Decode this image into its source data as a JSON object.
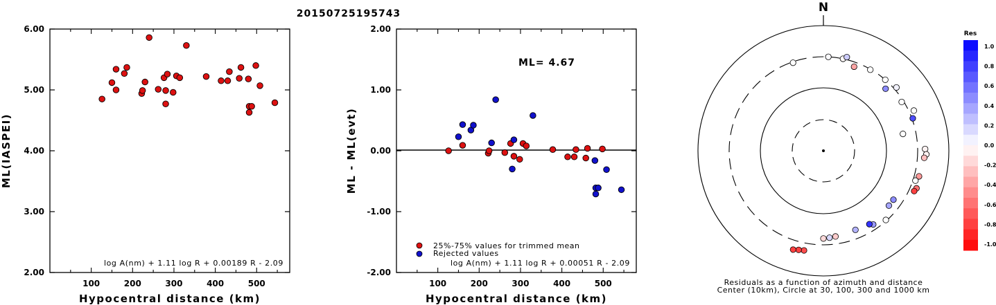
{
  "figure_title": "20150725195743",
  "colors": {
    "kept": "#dd1111",
    "rejected": "#1111cc",
    "axis": "#000000"
  },
  "chart_data": [
    {
      "type": "scatter",
      "xlabel": "Hypocentral distance (km)",
      "ylabel": "ML(IASPEI)",
      "xlim": [
        0,
        580
      ],
      "ylim": [
        2.0,
        6.0
      ],
      "x_ticks": [
        "100",
        "200",
        "300",
        "400",
        "500"
      ],
      "y_ticks": [
        "2.00",
        "3.00",
        "4.00",
        "5.00",
        "6.00"
      ],
      "formula": "log A(nm) + 1.11 log R + 0.00189 R - 2.09",
      "points": [
        {
          "x": 126,
          "y": 4.85
        },
        {
          "x": 150,
          "y": 5.12
        },
        {
          "x": 160,
          "y": 5.34
        },
        {
          "x": 160,
          "y": 5.0
        },
        {
          "x": 180,
          "y": 5.27
        },
        {
          "x": 186,
          "y": 5.37
        },
        {
          "x": 222,
          "y": 4.94
        },
        {
          "x": 224,
          "y": 4.99
        },
        {
          "x": 230,
          "y": 5.13
        },
        {
          "x": 240,
          "y": 5.86
        },
        {
          "x": 262,
          "y": 5.01
        },
        {
          "x": 276,
          "y": 5.2
        },
        {
          "x": 280,
          "y": 4.99
        },
        {
          "x": 280,
          "y": 4.77
        },
        {
          "x": 284,
          "y": 5.26
        },
        {
          "x": 298,
          "y": 4.96
        },
        {
          "x": 306,
          "y": 5.23
        },
        {
          "x": 314,
          "y": 5.2
        },
        {
          "x": 330,
          "y": 5.73
        },
        {
          "x": 378,
          "y": 5.22
        },
        {
          "x": 414,
          "y": 5.15
        },
        {
          "x": 430,
          "y": 5.15
        },
        {
          "x": 434,
          "y": 5.3
        },
        {
          "x": 458,
          "y": 5.19
        },
        {
          "x": 462,
          "y": 5.37
        },
        {
          "x": 480,
          "y": 5.18
        },
        {
          "x": 482,
          "y": 4.73
        },
        {
          "x": 482,
          "y": 4.63
        },
        {
          "x": 488,
          "y": 4.73
        },
        {
          "x": 498,
          "y": 5.4
        },
        {
          "x": 508,
          "y": 5.07
        },
        {
          "x": 544,
          "y": 4.79
        }
      ]
    },
    {
      "type": "scatter",
      "xlabel": "Hypocentral distance (km)",
      "ylabel": "ML - ML(evt)",
      "xlim": [
        0,
        580
      ],
      "ylim": [
        -2.0,
        2.0
      ],
      "x_ticks": [
        "100",
        "200",
        "300",
        "400",
        "500"
      ],
      "y_ticks": [
        "-2.00",
        "-1.00",
        "0.00",
        "1.00",
        "2.00"
      ],
      "zero_line": true,
      "annotation": "ML= 4.67",
      "formula": "log A(nm) + 1.11 log R + 0.00051 R - 2.09",
      "legend": [
        "25%-75% values for trimmed mean",
        "Rejected values"
      ],
      "legend_position": "bottom-left",
      "series": [
        {
          "name": "25%-75% values for trimmed mean",
          "points": [
            {
              "x": 126,
              "y": 0.0
            },
            {
              "x": 160,
              "y": 0.09
            },
            {
              "x": 222,
              "y": -0.04
            },
            {
              "x": 224,
              "y": 0.0
            },
            {
              "x": 262,
              "y": -0.03
            },
            {
              "x": 276,
              "y": 0.12
            },
            {
              "x": 284,
              "y": -0.09
            },
            {
              "x": 298,
              "y": -0.14
            },
            {
              "x": 306,
              "y": 0.12
            },
            {
              "x": 314,
              "y": 0.08
            },
            {
              "x": 378,
              "y": 0.02
            },
            {
              "x": 414,
              "y": -0.1
            },
            {
              "x": 430,
              "y": -0.1
            },
            {
              "x": 434,
              "y": 0.02
            },
            {
              "x": 458,
              "y": -0.12
            },
            {
              "x": 462,
              "y": 0.04
            },
            {
              "x": 498,
              "y": 0.03
            }
          ]
        },
        {
          "name": "Rejected values",
          "points": [
            {
              "x": 150,
              "y": 0.23
            },
            {
              "x": 160,
              "y": 0.43
            },
            {
              "x": 180,
              "y": 0.34
            },
            {
              "x": 186,
              "y": 0.42
            },
            {
              "x": 230,
              "y": 0.13
            },
            {
              "x": 240,
              "y": 0.84
            },
            {
              "x": 280,
              "y": -0.3
            },
            {
              "x": 284,
              "y": 0.18
            },
            {
              "x": 330,
              "y": 0.58
            },
            {
              "x": 480,
              "y": -0.16
            },
            {
              "x": 482,
              "y": -0.61
            },
            {
              "x": 482,
              "y": -0.71
            },
            {
              "x": 488,
              "y": -0.61
            },
            {
              "x": 508,
              "y": -0.31
            },
            {
              "x": 544,
              "y": -0.64
            }
          ]
        }
      ]
    },
    {
      "type": "scatter",
      "projection": "polar",
      "north_label": "N",
      "caption_line1": "Residuals as a function of azimuth and distance",
      "caption_line2": "Center (10km), Circle at 30, 100, 300 and 1000 km",
      "colorbar_title": "Res",
      "colorbar_range": [
        -1.0,
        1.0
      ],
      "colorbar_ticks": [
        "1.0",
        "0.8",
        "0.6",
        "0.4",
        "0.2",
        "0.0",
        "-0.2",
        "-0.4",
        "-0.6",
        "-0.8",
        "-1.0"
      ],
      "points": [
        {
          "azimuth": 341,
          "distance_km": 290,
          "residual": 0.0
        },
        {
          "azimuth": 3,
          "distance_km": 300,
          "residual": 0.02
        },
        {
          "azimuth": 12,
          "distance_km": 300,
          "residual": -0.02
        },
        {
          "azimuth": 14,
          "distance_km": 330,
          "residual": 0.2
        },
        {
          "azimuth": 20,
          "distance_km": 255,
          "residual": -0.35
        },
        {
          "azimuth": 30,
          "distance_km": 295,
          "residual": 0.0
        },
        {
          "azimuth": 41,
          "distance_km": 300,
          "residual": 0.0
        },
        {
          "azimuth": 45,
          "distance_km": 240,
          "residual": 0.45
        },
        {
          "azimuth": 49,
          "distance_km": 330,
          "residual": 0.05
        },
        {
          "azimuth": 58,
          "distance_km": 280,
          "residual": 0.0
        },
        {
          "azimuth": 66,
          "distance_km": 360,
          "residual": 0.0
        },
        {
          "azimuth": 70,
          "distance_km": 310,
          "residual": 0.7
        },
        {
          "azimuth": 78,
          "distance_km": 190,
          "residual": 0.0
        },
        {
          "azimuth": 89,
          "distance_km": 400,
          "residual": -0.05
        },
        {
          "azimuth": 92,
          "distance_km": 420,
          "residual": -0.05
        },
        {
          "azimuth": 94,
          "distance_km": 390,
          "residual": -0.25
        },
        {
          "azimuth": 105,
          "distance_km": 360,
          "residual": -0.4
        },
        {
          "azimuth": 108,
          "distance_km": 330,
          "residual": 0.0
        },
        {
          "azimuth": 112,
          "distance_km": 380,
          "residual": -0.55
        },
        {
          "azimuth": 114,
          "distance_km": 365,
          "residual": -0.75
        },
        {
          "azimuth": 125,
          "distance_km": 220,
          "residual": 0.45
        },
        {
          "azimuth": 130,
          "distance_km": 220,
          "residual": 0.35
        },
        {
          "azimuth": 138,
          "distance_km": 290,
          "residual": 0.0
        },
        {
          "azimuth": 146,
          "distance_km": 250,
          "residual": 0.4
        },
        {
          "azimuth": 148,
          "distance_km": 230,
          "residual": 0.8
        },
        {
          "azimuth": 158,
          "distance_km": 220,
          "residual": 0.3
        },
        {
          "azimuth": 172,
          "distance_km": 230,
          "residual": -0.2
        },
        {
          "azimuth": 176,
          "distance_km": 235,
          "residual": 0.15
        },
        {
          "azimuth": 180,
          "distance_km": 240,
          "residual": -0.15
        },
        {
          "azimuth": 191,
          "distance_km": 400,
          "residual": -0.7
        },
        {
          "azimuth": 194,
          "distance_km": 410,
          "residual": -0.75
        },
        {
          "azimuth": 197,
          "distance_km": 430,
          "residual": -0.75
        }
      ]
    }
  ]
}
